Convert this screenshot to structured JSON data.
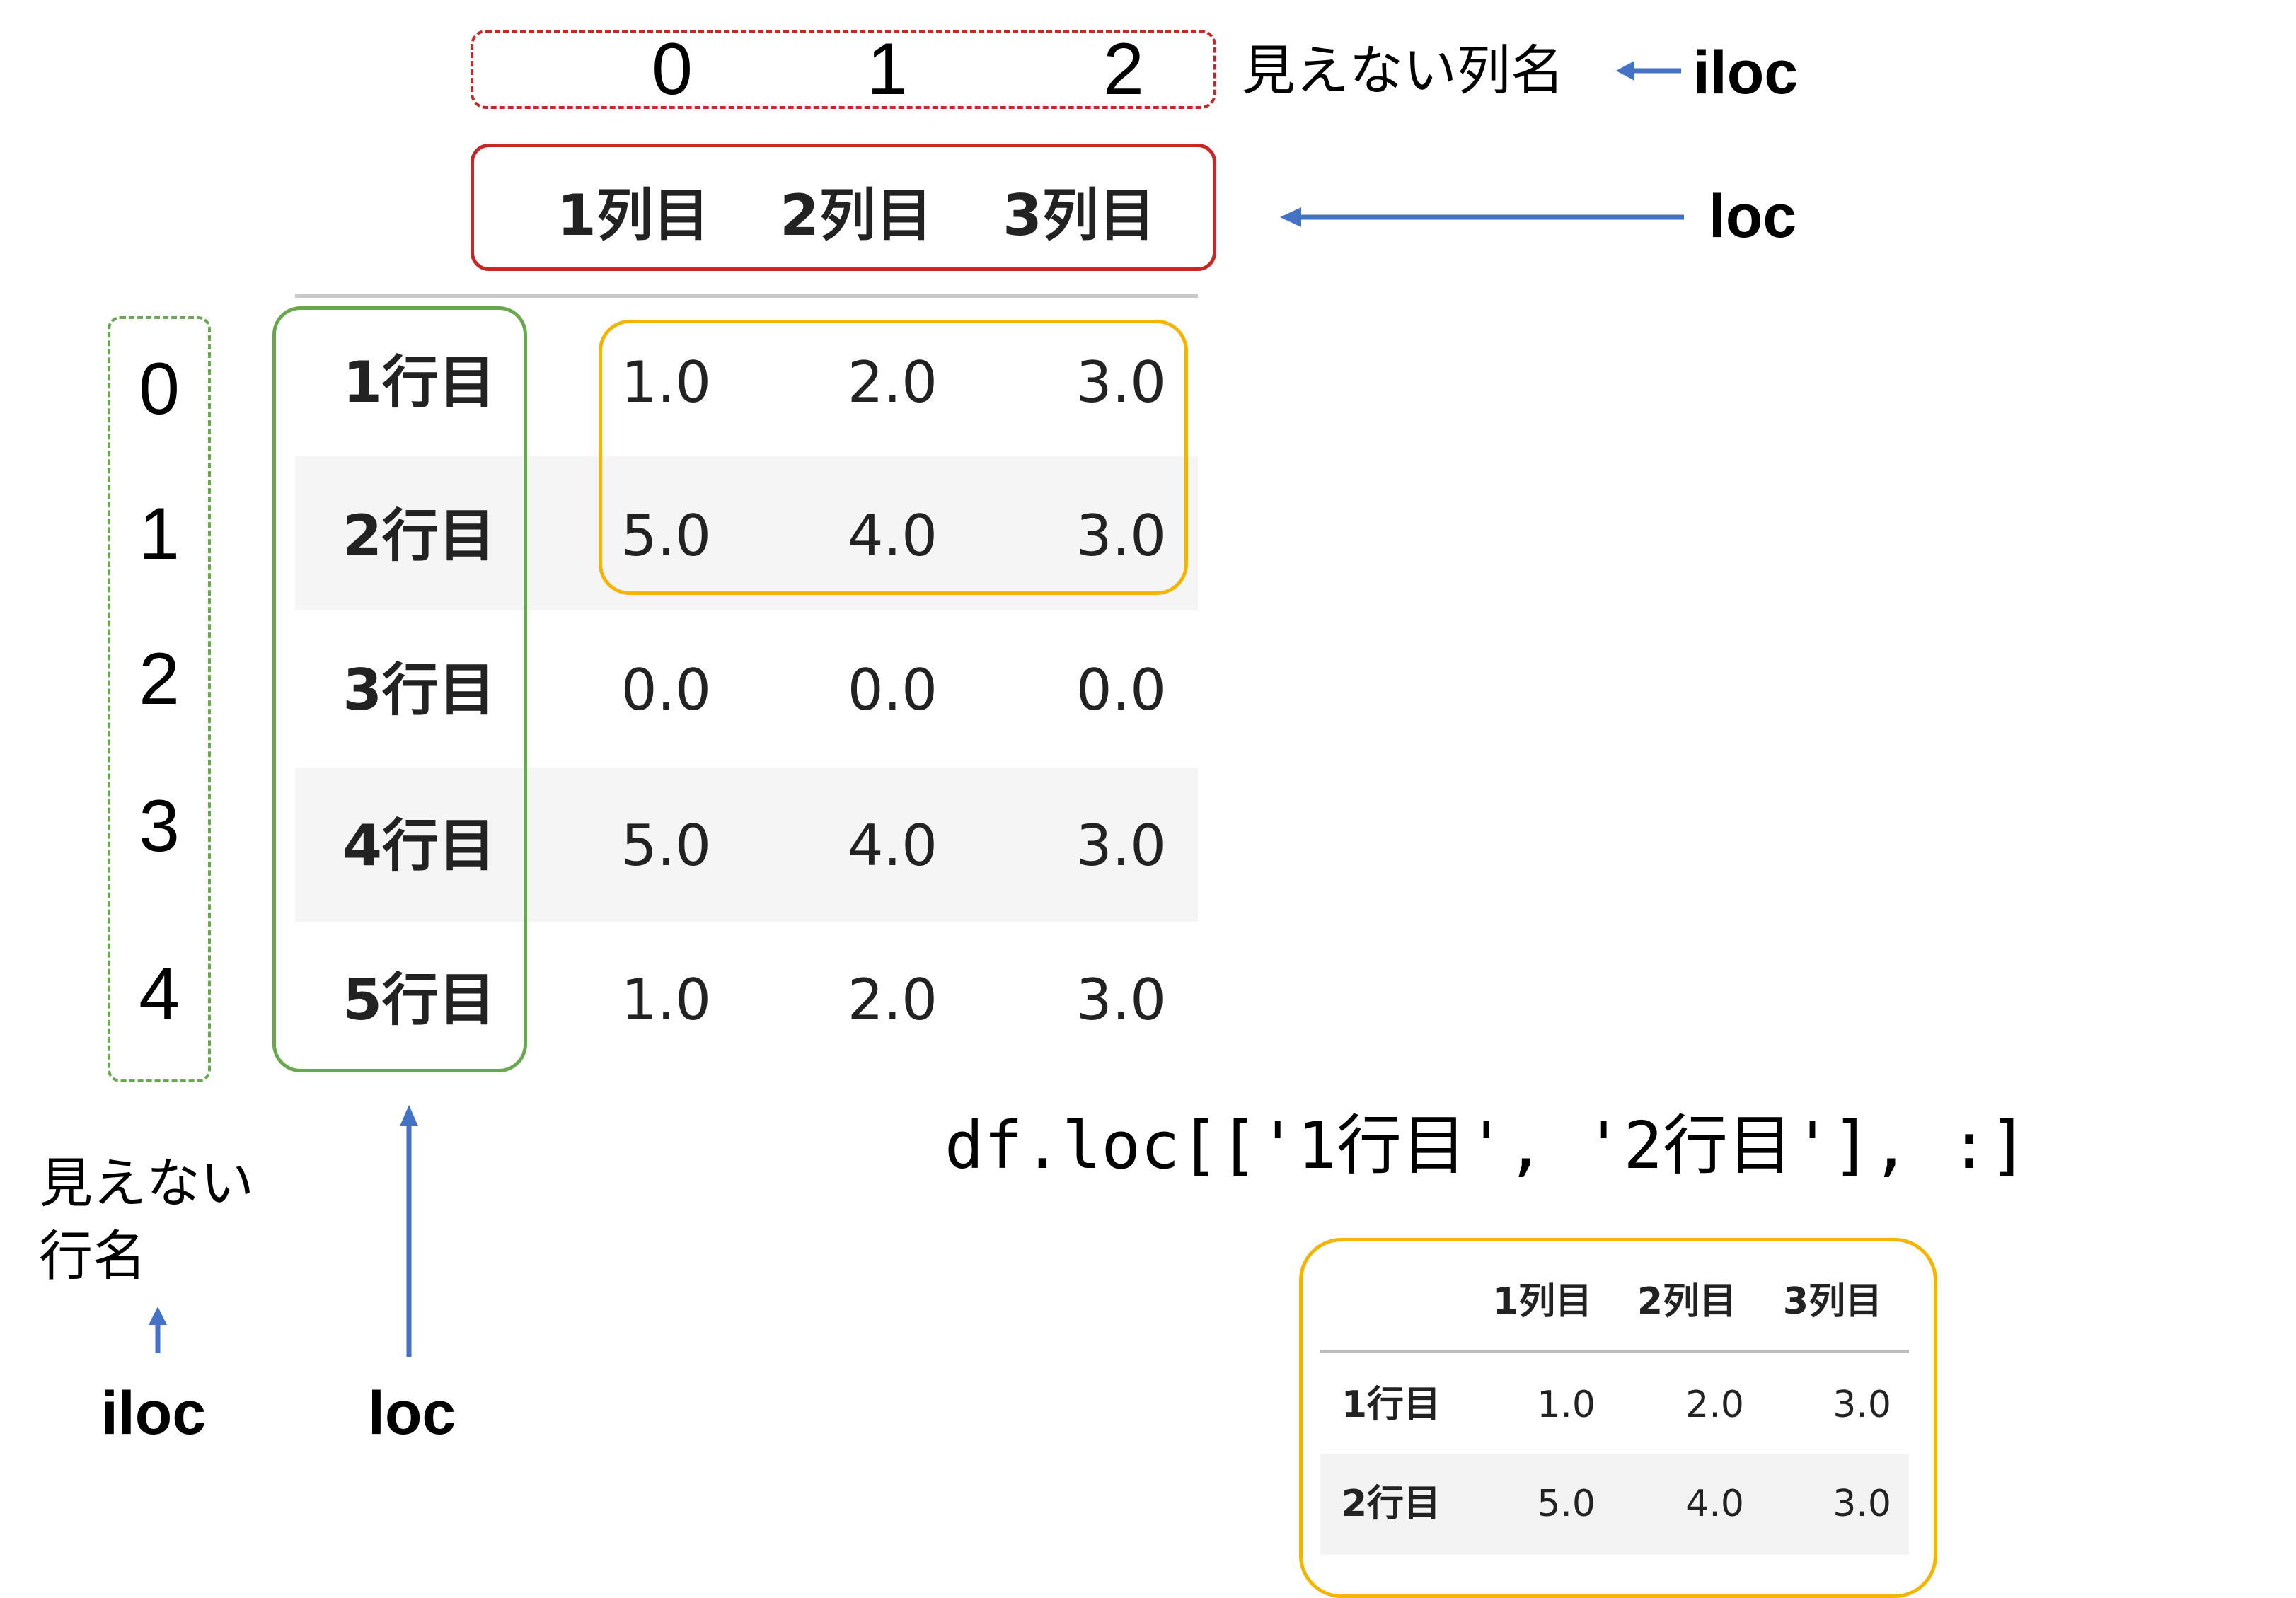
{
  "hidden_columns": {
    "numbers": [
      "0",
      "1",
      "2"
    ],
    "label": "見えない列名",
    "accessor": "iloc"
  },
  "column_header": {
    "names": [
      "1列目",
      "2列目",
      "3列目"
    ],
    "accessor": "loc"
  },
  "rows": [
    {
      "label": "1行目",
      "values": [
        "1.0",
        "2.0",
        "3.0"
      ]
    },
    {
      "label": "2行目",
      "values": [
        "5.0",
        "4.0",
        "3.0"
      ]
    },
    {
      "label": "3行目",
      "values": [
        "0.0",
        "0.0",
        "0.0"
      ]
    },
    {
      "label": "4行目",
      "values": [
        "5.0",
        "4.0",
        "3.0"
      ]
    },
    {
      "label": "5行目",
      "values": [
        "1.0",
        "2.0",
        "3.0"
      ]
    }
  ],
  "hidden_rows": {
    "numbers": [
      "0",
      "1",
      "2",
      "3",
      "4"
    ],
    "label_line1": "見えない",
    "label_line2": "行名",
    "accessor": "iloc"
  },
  "row_labels_accessor": "loc",
  "code": "df.loc[['1行目', '2行目'], :]",
  "result": {
    "columns": [
      "1列目",
      "2列目",
      "3列目"
    ],
    "rows": [
      {
        "label": "1行目",
        "values": [
          "1.0",
          "2.0",
          "3.0"
        ]
      },
      {
        "label": "2行目",
        "values": [
          "5.0",
          "4.0",
          "3.0"
        ]
      }
    ]
  },
  "colors": {
    "hidden_column_box": "#c62828",
    "header_box": "#c62828",
    "hidden_row_box": "#6aa84f",
    "row_label_box": "#6aa84f",
    "selection_box": "#f4b400",
    "arrow": "#4472c4"
  }
}
